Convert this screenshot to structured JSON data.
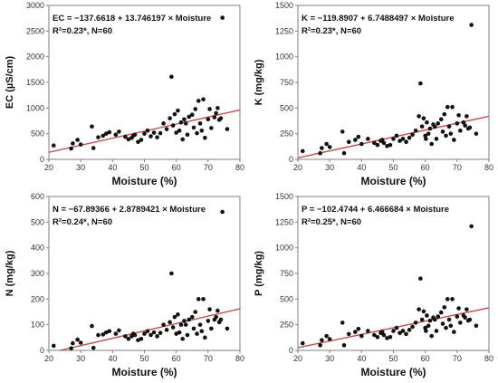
{
  "colors": {
    "trendline": "#c0504d",
    "point": "#111111",
    "frame": "#7f7f7f"
  },
  "chart_data": [
    {
      "type": "scatter",
      "xlabel": "Moisture (%)",
      "ylabel": "EC (µS/cm)",
      "xlim": [
        20,
        80
      ],
      "ylim": [
        0,
        3000
      ],
      "xticks": [
        20,
        30,
        40,
        50,
        60,
        70,
        80
      ],
      "yticks": [
        0,
        500,
        1000,
        1500,
        2000,
        2500,
        3000
      ],
      "equation": "EC = −137.6618 + 13.746197 × Moisture",
      "stats": "R²=0.23*, N=60",
      "fit": {
        "intercept": -137.6618,
        "slope": 13.746197
      },
      "points": [
        [
          21.5,
          270
        ],
        [
          27,
          210
        ],
        [
          27.5,
          310
        ],
        [
          29,
          380
        ],
        [
          30,
          290
        ],
        [
          33.5,
          640
        ],
        [
          34,
          220
        ],
        [
          35.5,
          430
        ],
        [
          37,
          460
        ],
        [
          38,
          500
        ],
        [
          39,
          530
        ],
        [
          41,
          480
        ],
        [
          42,
          540
        ],
        [
          44,
          440
        ],
        [
          45,
          390
        ],
        [
          46,
          420
        ],
        [
          46.5,
          460
        ],
        [
          47,
          480
        ],
        [
          48,
          340
        ],
        [
          49,
          380
        ],
        [
          50,
          500
        ],
        [
          51,
          560
        ],
        [
          52,
          450
        ],
        [
          53,
          520
        ],
        [
          54,
          430
        ],
        [
          55,
          510
        ],
        [
          56,
          700
        ],
        [
          57,
          590
        ],
        [
          58,
          800
        ],
        [
          58.5,
          1610
        ],
        [
          59,
          660
        ],
        [
          59.5,
          880
        ],
        [
          60,
          520
        ],
        [
          60.5,
          950
        ],
        [
          61,
          560
        ],
        [
          61.5,
          720
        ],
        [
          62,
          390
        ],
        [
          62.5,
          780
        ],
        [
          63,
          700
        ],
        [
          63.5,
          480
        ],
        [
          64,
          830
        ],
        [
          65,
          870
        ],
        [
          65.5,
          620
        ],
        [
          66,
          980
        ],
        [
          66.5,
          510
        ],
        [
          67,
          1140
        ],
        [
          67.5,
          700
        ],
        [
          68,
          560
        ],
        [
          68.5,
          1170
        ],
        [
          69,
          420
        ],
        [
          70,
          780
        ],
        [
          70.5,
          980
        ],
        [
          71,
          610
        ],
        [
          72,
          820
        ],
        [
          72.5,
          900
        ],
        [
          73,
          1000
        ],
        [
          73.5,
          770
        ],
        [
          74,
          800
        ],
        [
          74.5,
          2760
        ],
        [
          76,
          590
        ]
      ]
    },
    {
      "type": "scatter",
      "xlabel": "Moisture (%)",
      "ylabel": "K (mg/kg)",
      "xlim": [
        20,
        80
      ],
      "ylim": [
        0,
        1500
      ],
      "xticks": [
        20,
        30,
        40,
        50,
        60,
        70,
        80
      ],
      "yticks": [
        0,
        250,
        500,
        750,
        1000,
        1250,
        1500
      ],
      "equation": "K = −119.8907 + 6.7488497 × Moisture",
      "stats": "R²=0.23*, N=60",
      "fit": {
        "intercept": -119.8907,
        "slope": 6.7488497
      },
      "points": [
        [
          21.5,
          80
        ],
        [
          27,
          60
        ],
        [
          27.5,
          110
        ],
        [
          29,
          150
        ],
        [
          30,
          120
        ],
        [
          34,
          270
        ],
        [
          34.5,
          60
        ],
        [
          36,
          170
        ],
        [
          38,
          190
        ],
        [
          39,
          220
        ],
        [
          40,
          150
        ],
        [
          42,
          200
        ],
        [
          44,
          160
        ],
        [
          45,
          140
        ],
        [
          46,
          180
        ],
        [
          46.5,
          190
        ],
        [
          47,
          160
        ],
        [
          48,
          130
        ],
        [
          49,
          140
        ],
        [
          50,
          200
        ],
        [
          51,
          230
        ],
        [
          52,
          180
        ],
        [
          53,
          200
        ],
        [
          54,
          170
        ],
        [
          55,
          210
        ],
        [
          56,
          240
        ],
        [
          57,
          280
        ],
        [
          58,
          420
        ],
        [
          58.5,
          740
        ],
        [
          59,
          320
        ],
        [
          59.5,
          400
        ],
        [
          60,
          230
        ],
        [
          60.5,
          360
        ],
        [
          61,
          250
        ],
        [
          61.5,
          300
        ],
        [
          62,
          150
        ],
        [
          62.5,
          340
        ],
        [
          63,
          320
        ],
        [
          63.5,
          200
        ],
        [
          64,
          350
        ],
        [
          65,
          390
        ],
        [
          65.5,
          270
        ],
        [
          66,
          440
        ],
        [
          66.5,
          230
        ],
        [
          67,
          510
        ],
        [
          67.5,
          320
        ],
        [
          68,
          250
        ],
        [
          68.5,
          510
        ],
        [
          69,
          190
        ],
        [
          70,
          350
        ],
        [
          70.5,
          430
        ],
        [
          71,
          280
        ],
        [
          72,
          360
        ],
        [
          72.5,
          330
        ],
        [
          73,
          420
        ],
        [
          73.5,
          300
        ],
        [
          74,
          310
        ],
        [
          74.5,
          1310
        ],
        [
          76,
          250
        ],
        [
          60.2,
          200
        ]
      ]
    },
    {
      "type": "scatter",
      "xlabel": "Moisture (%)",
      "ylabel": "N (mg/kg)",
      "xlim": [
        20,
        80
      ],
      "ylim": [
        0,
        600
      ],
      "xticks": [
        20,
        30,
        40,
        50,
        60,
        70,
        80
      ],
      "yticks": [
        0,
        100,
        200,
        300,
        400,
        500,
        600
      ],
      "equation": "N = −67.89366 + 2.8789421 × Moisture",
      "stats": "R²=0.24*, N=60",
      "fit": {
        "intercept": -67.89366,
        "slope": 2.8789421
      },
      "points": [
        [
          21.5,
          18
        ],
        [
          27,
          8
        ],
        [
          27.5,
          28
        ],
        [
          29,
          42
        ],
        [
          30,
          30
        ],
        [
          33.5,
          95
        ],
        [
          34,
          10
        ],
        [
          35.5,
          60
        ],
        [
          37,
          62
        ],
        [
          38,
          70
        ],
        [
          39,
          75
        ],
        [
          41,
          65
        ],
        [
          42,
          78
        ],
        [
          44,
          55
        ],
        [
          45,
          45
        ],
        [
          46,
          55
        ],
        [
          46.5,
          65
        ],
        [
          47,
          60
        ],
        [
          48,
          40
        ],
        [
          49,
          45
        ],
        [
          50,
          65
        ],
        [
          51,
          75
        ],
        [
          52,
          60
        ],
        [
          53,
          70
        ],
        [
          54,
          55
        ],
        [
          55,
          68
        ],
        [
          56,
          100
        ],
        [
          57,
          80
        ],
        [
          58,
          110
        ],
        [
          58.5,
          300
        ],
        [
          59,
          90
        ],
        [
          59.5,
          130
        ],
        [
          60,
          65
        ],
        [
          60.5,
          140
        ],
        [
          61,
          70
        ],
        [
          61.5,
          100
        ],
        [
          62,
          45
        ],
        [
          62.5,
          115
        ],
        [
          63,
          100
        ],
        [
          63.5,
          60
        ],
        [
          64,
          120
        ],
        [
          65,
          130
        ],
        [
          65.5,
          85
        ],
        [
          66,
          150
        ],
        [
          66.5,
          65
        ],
        [
          67,
          200
        ],
        [
          67.5,
          100
        ],
        [
          68,
          75
        ],
        [
          68.5,
          200
        ],
        [
          69,
          50
        ],
        [
          70,
          115
        ],
        [
          70.5,
          160
        ],
        [
          71,
          85
        ],
        [
          72,
          120
        ],
        [
          72.5,
          130
        ],
        [
          73,
          155
        ],
        [
          73.5,
          110
        ],
        [
          74,
          120
        ],
        [
          74.5,
          540
        ],
        [
          76,
          85
        ]
      ]
    },
    {
      "type": "scatter",
      "xlabel": "Moisture (%)",
      "ylabel": "P (mg/kg)",
      "xlim": [
        20,
        80
      ],
      "ylim": [
        0,
        1500
      ],
      "xticks": [
        20,
        30,
        40,
        50,
        60,
        70,
        80
      ],
      "yticks": [
        0,
        250,
        500,
        750,
        1000,
        1250,
        1500
      ],
      "equation": "P = −102.4744 + 6.466684 × Moisture",
      "stats": "R²=0.25*, N=60",
      "fit": {
        "intercept": -102.4744,
        "slope": 6.466684
      },
      "points": [
        [
          21.5,
          70
        ],
        [
          27,
          50
        ],
        [
          27.5,
          100
        ],
        [
          29,
          140
        ],
        [
          30,
          110
        ],
        [
          34,
          270
        ],
        [
          34.5,
          50
        ],
        [
          36,
          160
        ],
        [
          38,
          180
        ],
        [
          39,
          210
        ],
        [
          40,
          140
        ],
        [
          42,
          190
        ],
        [
          44,
          150
        ],
        [
          45,
          130
        ],
        [
          46,
          170
        ],
        [
          46.5,
          180
        ],
        [
          47,
          150
        ],
        [
          48,
          120
        ],
        [
          49,
          130
        ],
        [
          50,
          190
        ],
        [
          51,
          220
        ],
        [
          52,
          170
        ],
        [
          53,
          190
        ],
        [
          54,
          160
        ],
        [
          55,
          200
        ],
        [
          56,
          230
        ],
        [
          57,
          270
        ],
        [
          58,
          400
        ],
        [
          58.5,
          700
        ],
        [
          59,
          300
        ],
        [
          59.5,
          380
        ],
        [
          60,
          220
        ],
        [
          60.5,
          340
        ],
        [
          61,
          240
        ],
        [
          61.5,
          290
        ],
        [
          62,
          140
        ],
        [
          62.5,
          320
        ],
        [
          63,
          300
        ],
        [
          63.5,
          190
        ],
        [
          64,
          330
        ],
        [
          65,
          370
        ],
        [
          65.5,
          260
        ],
        [
          66,
          420
        ],
        [
          66.5,
          220
        ],
        [
          67,
          500
        ],
        [
          67.5,
          300
        ],
        [
          68,
          240
        ],
        [
          68.5,
          500
        ],
        [
          69,
          180
        ],
        [
          70,
          330
        ],
        [
          70.5,
          410
        ],
        [
          71,
          270
        ],
        [
          72,
          340
        ],
        [
          72.5,
          320
        ],
        [
          73,
          400
        ],
        [
          73.5,
          290
        ],
        [
          74,
          300
        ],
        [
          74.5,
          1210
        ],
        [
          76,
          240
        ],
        [
          60.2,
          190
        ]
      ]
    }
  ]
}
